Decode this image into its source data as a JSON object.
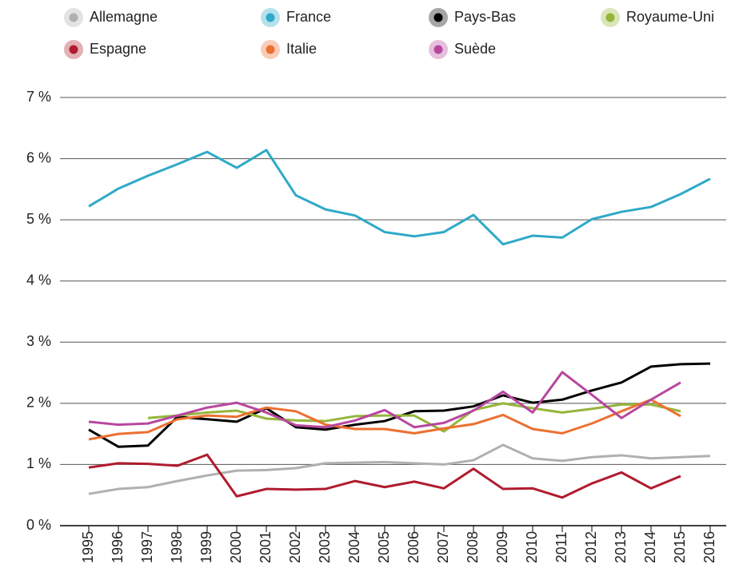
{
  "chart_data": {
    "type": "line",
    "categories": [
      "1995",
      "1996",
      "1997",
      "1998",
      "1999",
      "2000",
      "2001",
      "2002",
      "2003",
      "2004",
      "2005",
      "2006",
      "2007",
      "2008",
      "2009",
      "2010",
      "2011",
      "2012",
      "2013",
      "2014",
      "2015",
      "2016"
    ],
    "ylim": [
      0,
      7
    ],
    "yticks": [
      {
        "value": 0,
        "label": "0 %"
      },
      {
        "value": 1,
        "label": "1 %"
      },
      {
        "value": 2,
        "label": "2 %"
      },
      {
        "value": 3,
        "label": "3 %"
      },
      {
        "value": 4,
        "label": "4 %"
      },
      {
        "value": 5,
        "label": "5 %"
      },
      {
        "value": 6,
        "label": "6 %"
      },
      {
        "value": 7,
        "label": "7 %"
      }
    ],
    "grid": true,
    "series": [
      {
        "name": "Allemagne",
        "color": "#b0b0b0",
        "values": [
          0.52,
          0.6,
          0.63,
          0.73,
          0.82,
          0.9,
          0.91,
          0.94,
          1.02,
          1.03,
          1.04,
          1.02,
          1.0,
          1.07,
          1.32,
          1.1,
          1.06,
          1.12,
          1.15,
          1.1,
          1.12,
          1.14
        ]
      },
      {
        "name": "France",
        "color": "#2fa9c8",
        "values": [
          5.22,
          5.51,
          5.72,
          5.91,
          6.11,
          5.85,
          6.14,
          5.4,
          5.17,
          5.07,
          4.8,
          4.73,
          4.8,
          5.08,
          4.6,
          4.74,
          4.71,
          5.01,
          5.13,
          5.21,
          5.42,
          5.67
        ]
      },
      {
        "name": "Pays-Bas",
        "color": "#000000",
        "values": [
          1.57,
          1.29,
          1.31,
          1.78,
          1.74,
          1.7,
          1.92,
          1.61,
          1.57,
          1.65,
          1.71,
          1.87,
          1.88,
          1.95,
          2.13,
          2.01,
          2.06,
          2.21,
          2.34,
          2.6,
          2.64,
          2.65
        ]
      },
      {
        "name": "Royaume-Uni",
        "color": "#95b53a",
        "values": [
          null,
          null,
          1.76,
          1.8,
          1.85,
          1.88,
          1.75,
          1.72,
          1.71,
          1.79,
          1.8,
          1.8,
          1.54,
          1.89,
          2.0,
          1.92,
          1.85,
          1.91,
          1.98,
          1.98,
          1.87,
          null
        ]
      },
      {
        "name": "Espagne",
        "color": "#b01c2e",
        "values": [
          0.95,
          1.02,
          1.01,
          0.98,
          1.16,
          0.48,
          0.6,
          0.59,
          0.6,
          0.73,
          0.63,
          0.72,
          0.61,
          0.93,
          0.6,
          0.61,
          0.46,
          0.69,
          0.87,
          0.61,
          0.81,
          null
        ]
      },
      {
        "name": "Italie",
        "color": "#ec7030",
        "values": [
          1.41,
          1.5,
          1.53,
          1.74,
          1.8,
          1.78,
          1.93,
          1.87,
          1.65,
          1.58,
          1.58,
          1.51,
          1.59,
          1.66,
          1.81,
          1.58,
          1.51,
          1.67,
          1.87,
          2.06,
          1.79,
          null
        ]
      },
      {
        "name": "Suède",
        "color": "#b8479f",
        "values": [
          1.7,
          1.65,
          1.67,
          1.8,
          1.93,
          2.01,
          1.85,
          1.64,
          1.61,
          1.72,
          1.89,
          1.61,
          1.68,
          1.88,
          2.19,
          1.85,
          2.51,
          2.14,
          1.76,
          2.06,
          2.34,
          null
        ]
      }
    ]
  }
}
